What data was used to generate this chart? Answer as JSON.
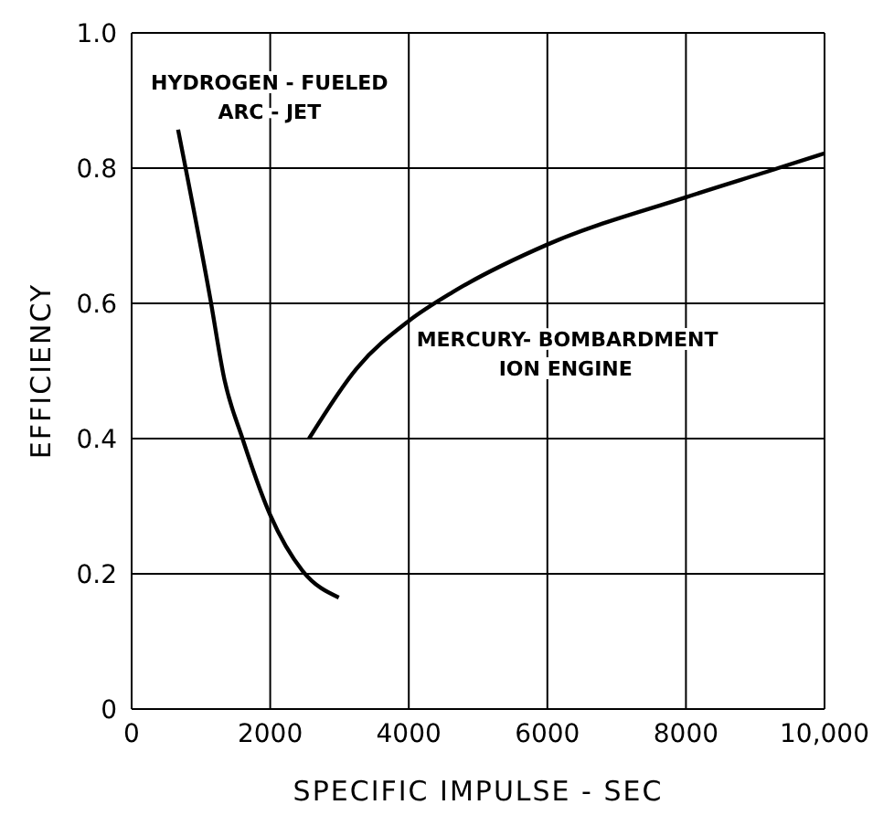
{
  "chart_data": {
    "type": "line",
    "xlabel": "SPECIFIC IMPULSE - SEC",
    "ylabel": "EFFICIENCY",
    "xlim": [
      0,
      10000
    ],
    "xticks": [
      0,
      2000,
      4000,
      6000,
      8000,
      {
        "value": 10000,
        "label": "10,000"
      }
    ],
    "ylim": [
      0,
      1
    ],
    "yticks": [
      0,
      0.2,
      0.4,
      0.6,
      0.8,
      {
        "value": 1,
        "label": "1.0"
      }
    ],
    "grid": true,
    "marker": "none",
    "line_style": "solid",
    "series": [
      {
        "name": "HYDROGEN - FUELED\nARC - JET",
        "color": "#000000",
        "x": [
          670,
          1130,
          1340,
          1600,
          2000,
          2470,
          2990
        ],
        "values": [
          0.857,
          0.61,
          0.487,
          0.4,
          0.287,
          0.204,
          0.165
        ]
      },
      {
        "name": "MERCURY- BOMBARDMENT\nION ENGINE",
        "color": "#000000",
        "x": [
          2560,
          3250,
          4000,
          4640,
          6000,
          8000,
          9330,
          10000
        ],
        "values": [
          0.4,
          0.504,
          0.574,
          0.617,
          0.687,
          0.757,
          0.8,
          0.822
        ]
      }
    ]
  }
}
